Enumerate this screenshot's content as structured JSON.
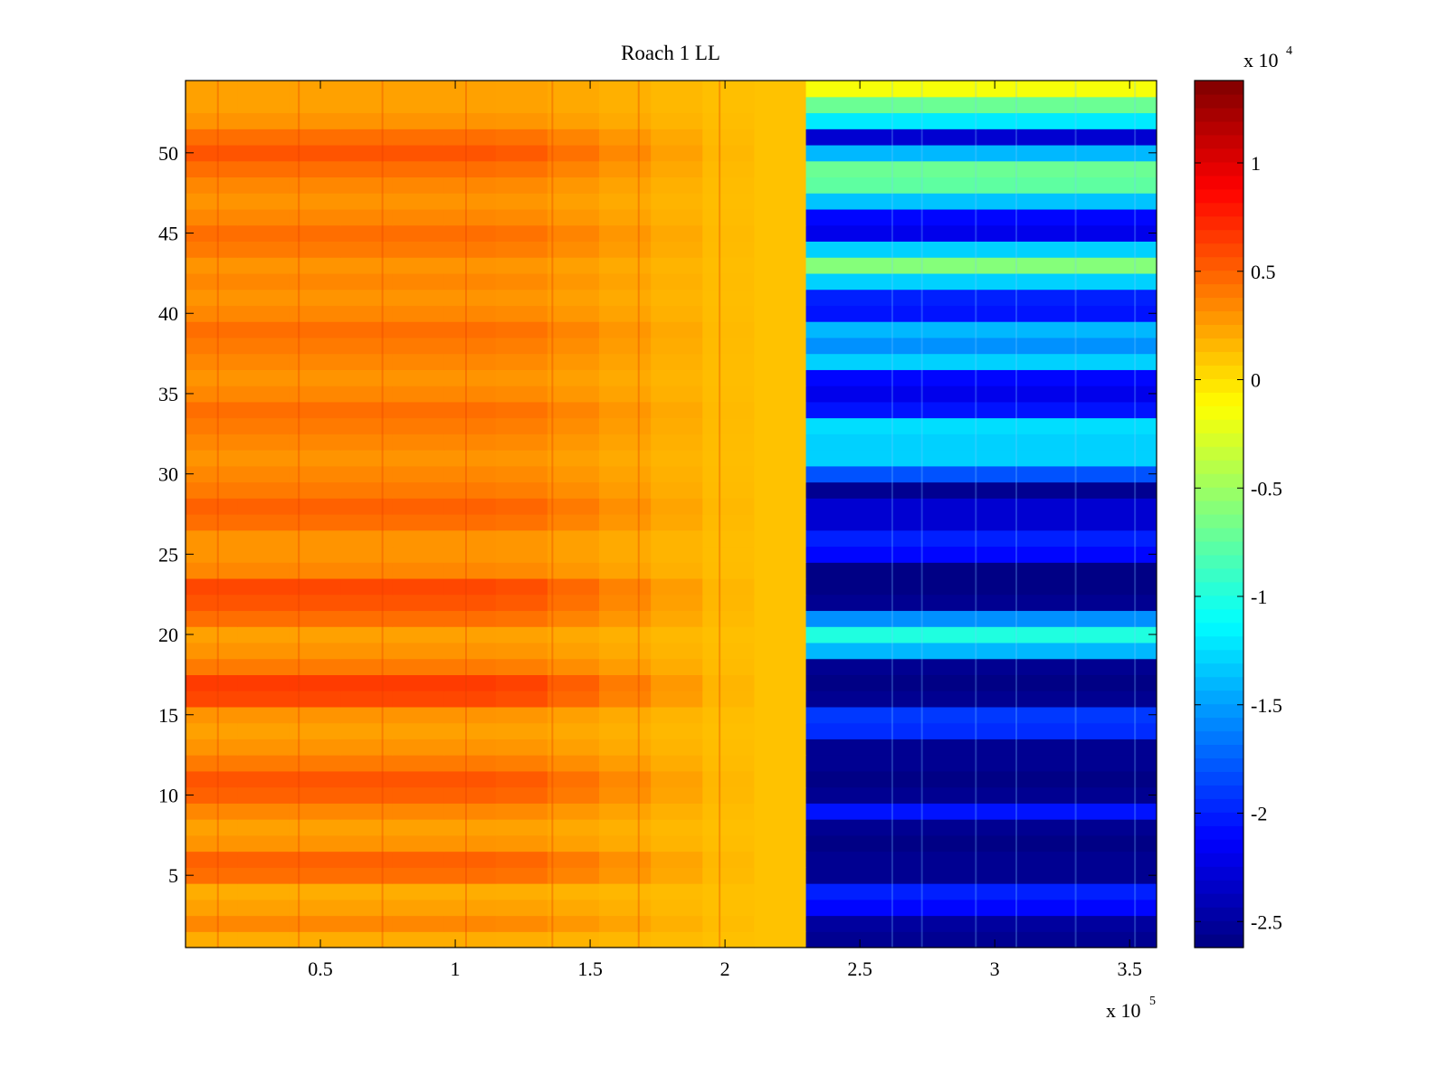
{
  "chart_data": {
    "type": "heatmap",
    "title": "Roach 1 LL",
    "xlabel": "",
    "ylabel": "",
    "x_exponent_label": "x 10",
    "x_exponent": "5",
    "x_ticks": [
      0.5,
      1,
      1.5,
      2,
      2.5,
      3,
      3.5
    ],
    "x_tick_labels": [
      "0.5",
      "1",
      "1.5",
      "2",
      "2.5",
      "3",
      "3.5"
    ],
    "xlim": [
      0.0,
      3.6
    ],
    "y_ticks": [
      5,
      10,
      15,
      20,
      25,
      30,
      35,
      40,
      45,
      50
    ],
    "y_tick_labels": [
      "5",
      "10",
      "15",
      "20",
      "25",
      "30",
      "35",
      "40",
      "45",
      "50"
    ],
    "ylim": [
      0.5,
      54.5
    ],
    "num_rows": 54,
    "step_x": 2.3,
    "colorbar": {
      "exponent_label": "x 10",
      "exponent": "4",
      "clim": [
        -2.62,
        1.38
      ],
      "ticks": [
        1,
        0.5,
        0,
        -0.5,
        -1,
        -1.5,
        -2,
        -2.5
      ],
      "tick_labels": [
        "1",
        "0.5",
        "0",
        "-0.5",
        "-1",
        "-1.5",
        "-2",
        "-2.5"
      ],
      "colormap": "jet"
    },
    "series": [
      {
        "name": "before_step (x < 2.3)",
        "note": "value per row (channel 1..54), x 10^4, left-edge intensity fading toward ~0.1 near x=2.2",
        "values": [
          0.2,
          0.35,
          0.25,
          0.2,
          0.45,
          0.5,
          0.3,
          0.25,
          0.35,
          0.5,
          0.55,
          0.4,
          0.3,
          0.25,
          0.3,
          0.6,
          0.65,
          0.4,
          0.3,
          0.25,
          0.45,
          0.55,
          0.6,
          0.35,
          0.3,
          0.3,
          0.45,
          0.5,
          0.4,
          0.35,
          0.3,
          0.35,
          0.4,
          0.45,
          0.35,
          0.3,
          0.35,
          0.4,
          0.45,
          0.35,
          0.3,
          0.35,
          0.3,
          0.4,
          0.45,
          0.35,
          0.3,
          0.35,
          0.45,
          0.55,
          0.45,
          0.3,
          0.25,
          0.25
        ]
      },
      {
        "name": "after_step (x > 2.3)",
        "note": "value per row (channel 1..54), x 10^4",
        "values": [
          -2.55,
          -2.5,
          -2.1,
          -2.0,
          -2.55,
          -2.55,
          -2.6,
          -2.55,
          -2.05,
          -2.55,
          -2.6,
          -2.55,
          -2.55,
          -1.95,
          -1.9,
          -2.55,
          -2.6,
          -2.55,
          -1.4,
          -1.0,
          -1.55,
          -2.55,
          -2.6,
          -2.6,
          -2.1,
          -2.0,
          -2.3,
          -2.3,
          -2.55,
          -1.8,
          -1.3,
          -1.3,
          -1.25,
          -2.05,
          -2.2,
          -2.1,
          -1.3,
          -1.55,
          -1.4,
          -2.05,
          -2.0,
          -1.3,
          -0.6,
          -1.3,
          -2.2,
          -2.1,
          -1.35,
          -0.75,
          -0.7,
          -1.4,
          -2.3,
          -1.2,
          -0.7,
          -0.15
        ]
      }
    ]
  }
}
